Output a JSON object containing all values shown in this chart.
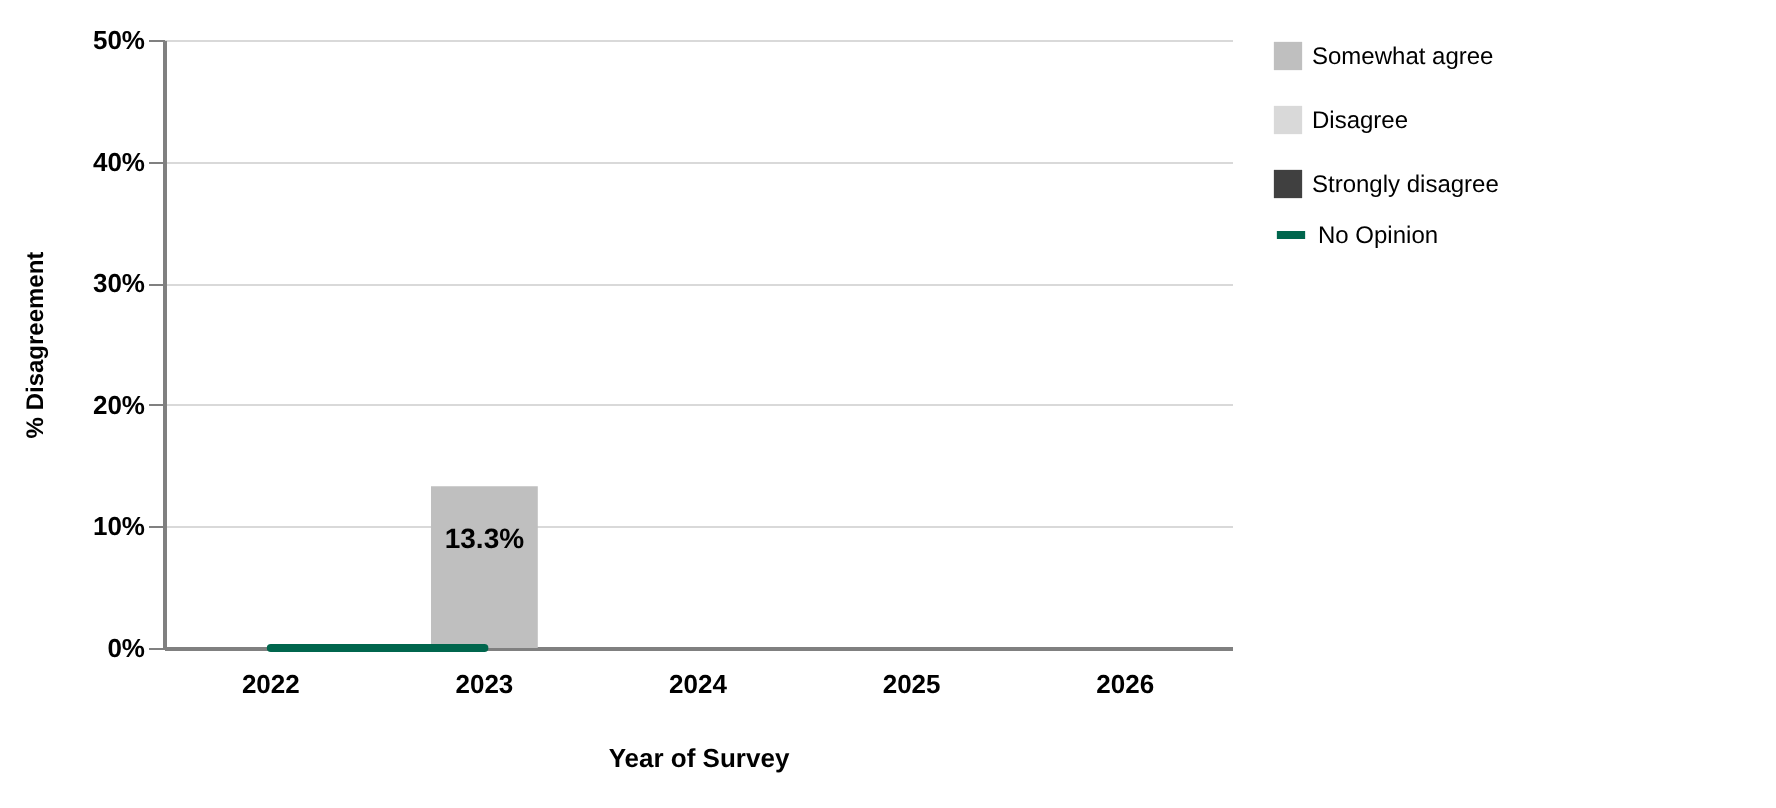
{
  "chart_data": {
    "type": "bar",
    "xlabel": "Year of Survey",
    "ylabel": "% Disagreement",
    "categories": [
      "2022",
      "2023",
      "2024",
      "2025",
      "2026"
    ],
    "series": [
      {
        "name": "Somewhat agree",
        "color": "#bfbfbf",
        "values": [
          null,
          13.3,
          null,
          null,
          null
        ],
        "value_labels": [
          null,
          "13.3%",
          null,
          null,
          null
        ]
      },
      {
        "name": "Disagree",
        "color": "#d9d9d9",
        "values": [
          null,
          null,
          null,
          null,
          null
        ]
      },
      {
        "name": "Strongly disagree",
        "color": "#404040",
        "values": [
          null,
          null,
          null,
          null,
          null
        ]
      },
      {
        "name": "No Opinion",
        "type": "line",
        "color": "#00664d",
        "values": [
          0,
          0,
          null,
          null,
          null
        ]
      }
    ],
    "ylim": [
      0,
      50
    ],
    "yticks": [
      {
        "value": 0,
        "label": "0%"
      },
      {
        "value": 10,
        "label": "10%"
      },
      {
        "value": 20,
        "label": "20%"
      },
      {
        "value": 30,
        "label": "30%"
      },
      {
        "value": 40,
        "label": "40%"
      },
      {
        "value": 50,
        "label": "50%"
      }
    ],
    "grid": "y",
    "legend": "right"
  }
}
